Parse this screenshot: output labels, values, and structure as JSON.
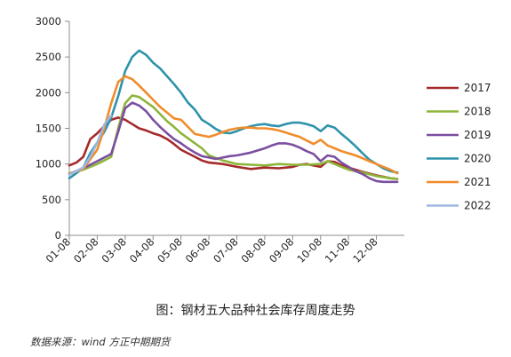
{
  "caption": "图：钢材五大品种社会库存周度走势",
  "source": "数据来源：wind  方正中期期货",
  "chart_data": {
    "type": "line",
    "title": "",
    "xlabel": "",
    "ylabel": "",
    "ylim": [
      0,
      3000
    ],
    "yticks": [
      0,
      500,
      1000,
      1500,
      2000,
      2500,
      3000
    ],
    "xlim": [
      1,
      13
    ],
    "xticks": [
      "01-08",
      "02-08",
      "03-08",
      "04-08",
      "05-08",
      "06-08",
      "07-08",
      "08-08",
      "09-08",
      "10-08",
      "11-08",
      "12-08"
    ],
    "grid": false,
    "legend_position": "right",
    "series": [
      {
        "name": "2017",
        "color": "#a52a2a",
        "x": [
          1,
          1.25,
          1.5,
          1.75,
          2,
          2.25,
          2.5,
          2.75,
          3,
          3.25,
          3.5,
          3.75,
          4,
          4.25,
          4.5,
          4.75,
          5,
          5.25,
          5.5,
          5.75,
          6,
          6.5,
          7,
          7.5,
          8,
          8.5,
          9,
          9.25,
          9.5,
          9.75,
          10,
          10.25,
          10.5,
          10.75,
          11,
          11.5,
          12,
          12.5,
          12.75
        ],
        "y": [
          980,
          1020,
          1100,
          1350,
          1430,
          1530,
          1620,
          1650,
          1620,
          1560,
          1500,
          1470,
          1430,
          1400,
          1350,
          1280,
          1200,
          1150,
          1100,
          1050,
          1020,
          1000,
          960,
          930,
          950,
          940,
          960,
          990,
          1000,
          980,
          960,
          1040,
          1030,
          980,
          950,
          890,
          840,
          800,
          790
        ]
      },
      {
        "name": "2018",
        "color": "#8db53a",
        "x": [
          1,
          1.5,
          2,
          2.25,
          2.5,
          2.75,
          3,
          3.25,
          3.5,
          3.75,
          4,
          4.25,
          4.5,
          4.75,
          5,
          5.25,
          5.5,
          5.75,
          6,
          6.5,
          7,
          7.5,
          8,
          8.5,
          9,
          9.5,
          10,
          10.25,
          10.5,
          10.75,
          11,
          11.5,
          12,
          12.5,
          12.75
        ],
        "y": [
          870,
          920,
          1000,
          1050,
          1100,
          1500,
          1850,
          1960,
          1940,
          1870,
          1800,
          1700,
          1600,
          1520,
          1430,
          1360,
          1290,
          1220,
          1120,
          1050,
          1000,
          990,
          980,
          1000,
          990,
          990,
          1000,
          1040,
          1000,
          960,
          920,
          880,
          830,
          800,
          790
        ]
      },
      {
        "name": "2019",
        "color": "#7b4fa0",
        "x": [
          1,
          1.5,
          2,
          2.25,
          2.5,
          2.75,
          3,
          3.25,
          3.5,
          3.75,
          4,
          4.25,
          4.5,
          4.75,
          5,
          5.25,
          5.5,
          5.75,
          6,
          6.25,
          6.5,
          6.75,
          7,
          7.5,
          8,
          8.25,
          8.5,
          8.75,
          9,
          9.25,
          9.5,
          9.75,
          10,
          10.25,
          10.5,
          10.75,
          11,
          11.25,
          11.5,
          11.75,
          12,
          12.25,
          12.5,
          12.75
        ],
        "y": [
          860,
          940,
          1040,
          1090,
          1140,
          1450,
          1780,
          1860,
          1820,
          1740,
          1620,
          1520,
          1430,
          1350,
          1290,
          1220,
          1160,
          1110,
          1090,
          1070,
          1090,
          1110,
          1120,
          1160,
          1220,
          1260,
          1290,
          1290,
          1270,
          1230,
          1180,
          1140,
          1040,
          1120,
          1100,
          1020,
          960,
          900,
          860,
          800,
          760,
          750,
          750,
          750
        ]
      },
      {
        "name": "2020",
        "color": "#2e93ab",
        "x": [
          1,
          1.25,
          1.5,
          1.75,
          2,
          2.25,
          2.5,
          2.75,
          3,
          3.25,
          3.5,
          3.75,
          4,
          4.25,
          4.5,
          4.75,
          5,
          5.25,
          5.5,
          5.75,
          6,
          6.25,
          6.5,
          6.75,
          7,
          7.25,
          7.5,
          7.75,
          8,
          8.25,
          8.5,
          8.75,
          9,
          9.25,
          9.5,
          9.75,
          10,
          10.25,
          10.5,
          10.75,
          11,
          11.25,
          11.5,
          11.75,
          12,
          12.25,
          12.5,
          12.75
        ],
        "y": [
          800,
          870,
          950,
          1150,
          1300,
          1450,
          1650,
          1950,
          2300,
          2500,
          2590,
          2530,
          2420,
          2340,
          2230,
          2120,
          2000,
          1860,
          1760,
          1620,
          1560,
          1490,
          1440,
          1430,
          1460,
          1500,
          1530,
          1550,
          1560,
          1540,
          1530,
          1560,
          1580,
          1580,
          1560,
          1530,
          1460,
          1540,
          1510,
          1420,
          1340,
          1250,
          1150,
          1060,
          1000,
          940,
          900,
          880
        ]
      },
      {
        "name": "2021",
        "color": "#f08c2a",
        "x": [
          1,
          1.5,
          2,
          2.25,
          2.5,
          2.75,
          3,
          3.25,
          3.5,
          3.75,
          4,
          4.25,
          4.5,
          4.75,
          5,
          5.25,
          5.5,
          5.75,
          6,
          6.25,
          6.5,
          6.75,
          7,
          7.25,
          7.5,
          7.75,
          8,
          8.25,
          8.5,
          8.75,
          9,
          9.25,
          9.5,
          9.75,
          10,
          10.25,
          10.5,
          10.75,
          11,
          11.25,
          11.5,
          11.75,
          12,
          12.25,
          12.5,
          12.75
        ],
        "y": [
          860,
          930,
          1200,
          1500,
          1850,
          2150,
          2230,
          2190,
          2100,
          2000,
          1900,
          1800,
          1720,
          1640,
          1620,
          1520,
          1420,
          1400,
          1380,
          1410,
          1450,
          1480,
          1500,
          1510,
          1510,
          1500,
          1500,
          1490,
          1470,
          1440,
          1410,
          1380,
          1330,
          1280,
          1340,
          1260,
          1220,
          1180,
          1150,
          1120,
          1080,
          1040,
          1000,
          960,
          920,
          870
        ]
      },
      {
        "name": "2022",
        "color": "#9db8e0",
        "x": [
          1,
          1.25,
          1.5,
          1.75,
          2,
          2.25,
          2.5
        ],
        "y": [
          850,
          900,
          950,
          1100,
          1300,
          1550,
          1680
        ]
      }
    ]
  }
}
